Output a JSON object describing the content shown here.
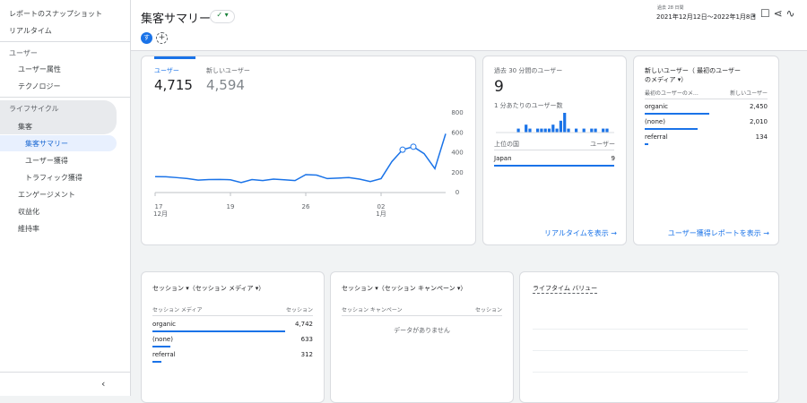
{
  "sidebar": {
    "top": [
      "レポートのスナップショット",
      "リアルタイム"
    ],
    "sections": [
      {
        "title": "ユーザー",
        "items": [
          "ユーザー属性",
          "テクノロジー"
        ]
      },
      {
        "title": "ライフサイクル",
        "items": [
          "集客",
          "エンゲージメント",
          "収益化"
        ],
        "children": [
          "集客サマリー",
          "ユーザー獲得",
          "トラフィック獲得"
        ]
      }
    ],
    "bottom": "維持率"
  },
  "header": {
    "title": "集客サマリー",
    "avatar": "す",
    "date_label": "過去 28 日間",
    "date_range": "2021年12月12日～2022年1月8日"
  },
  "overview": {
    "tabs": [
      {
        "label": "ユーザー",
        "value": "4,715"
      },
      {
        "label": "新しいユーザー",
        "value": "4,594"
      }
    ],
    "chart": {
      "type": "line",
      "color": "#1a73e8",
      "categories": [
        "17",
        null,
        null,
        null,
        null,
        null,
        null,
        "19",
        null,
        null,
        null,
        null,
        null,
        null,
        "26",
        null,
        null,
        null,
        null,
        null,
        null,
        "02",
        null,
        null,
        null,
        null,
        null,
        null
      ],
      "months": [
        "12月",
        null,
        null,
        null,
        null,
        null,
        null,
        null,
        null,
        null,
        null,
        null,
        null,
        null,
        null,
        null,
        null,
        null,
        null,
        null,
        null,
        "1月",
        null,
        null,
        null,
        null,
        null,
        null
      ],
      "values": [
        160,
        158,
        150,
        140,
        125,
        130,
        132,
        128,
        100,
        130,
        120,
        135,
        128,
        120,
        180,
        175,
        140,
        145,
        150,
        135,
        110,
        140,
        310,
        430,
        460,
        390,
        240,
        590
      ],
      "ylim": [
        0,
        800
      ],
      "yticks": [
        0,
        200,
        400,
        600,
        800
      ]
    }
  },
  "realtime": {
    "title": "過去 30 分間のユーザー",
    "value": "9",
    "subtitle": "1 分あたりのユーザー数",
    "bars": [
      0,
      0,
      0,
      0,
      0,
      1,
      0,
      2,
      1,
      0,
      1,
      1,
      1,
      1,
      2,
      1,
      3,
      5,
      1,
      0,
      1,
      0,
      1,
      0,
      1,
      1,
      0,
      1,
      1,
      0
    ],
    "col_country": "上位の国",
    "col_users": "ユーザー",
    "rows": [
      {
        "country": "Japan",
        "users": 9
      }
    ],
    "link": "リアルタイムを表示"
  },
  "new_users": {
    "title": "新しいユーザー（ 最初のユーザーのメディア ▾）",
    "col_dim": "最初のユーザーのメ…",
    "col_metric": "新しいユーザー",
    "rows": [
      {
        "label": "organic",
        "value": 2450,
        "value_label": "2,450"
      },
      {
        "label": "(none)",
        "value": 2010,
        "value_label": "2,010"
      },
      {
        "label": "referral",
        "value": 134
      }
    ],
    "link": "ユーザー獲得レポートを表示"
  },
  "sessions_medium": {
    "title": "セッション ▾（セッション メディア ▾）",
    "col_dim": "セッション メディア",
    "col_metric": "セッション",
    "rows": [
      {
        "label": "organic",
        "value": 4742,
        "value_label": "4,742"
      },
      {
        "label": "(none)",
        "value": 633
      },
      {
        "label": "referral",
        "value": 312
      }
    ]
  },
  "sessions_campaign": {
    "title": "セッション ▾（セッション キャンペーン ▾）",
    "col_dim": "セッション キャンペーン",
    "col_metric": "セッション",
    "empty": "データがありません"
  },
  "lifetime": {
    "title": "ライフタイム バリュー"
  }
}
